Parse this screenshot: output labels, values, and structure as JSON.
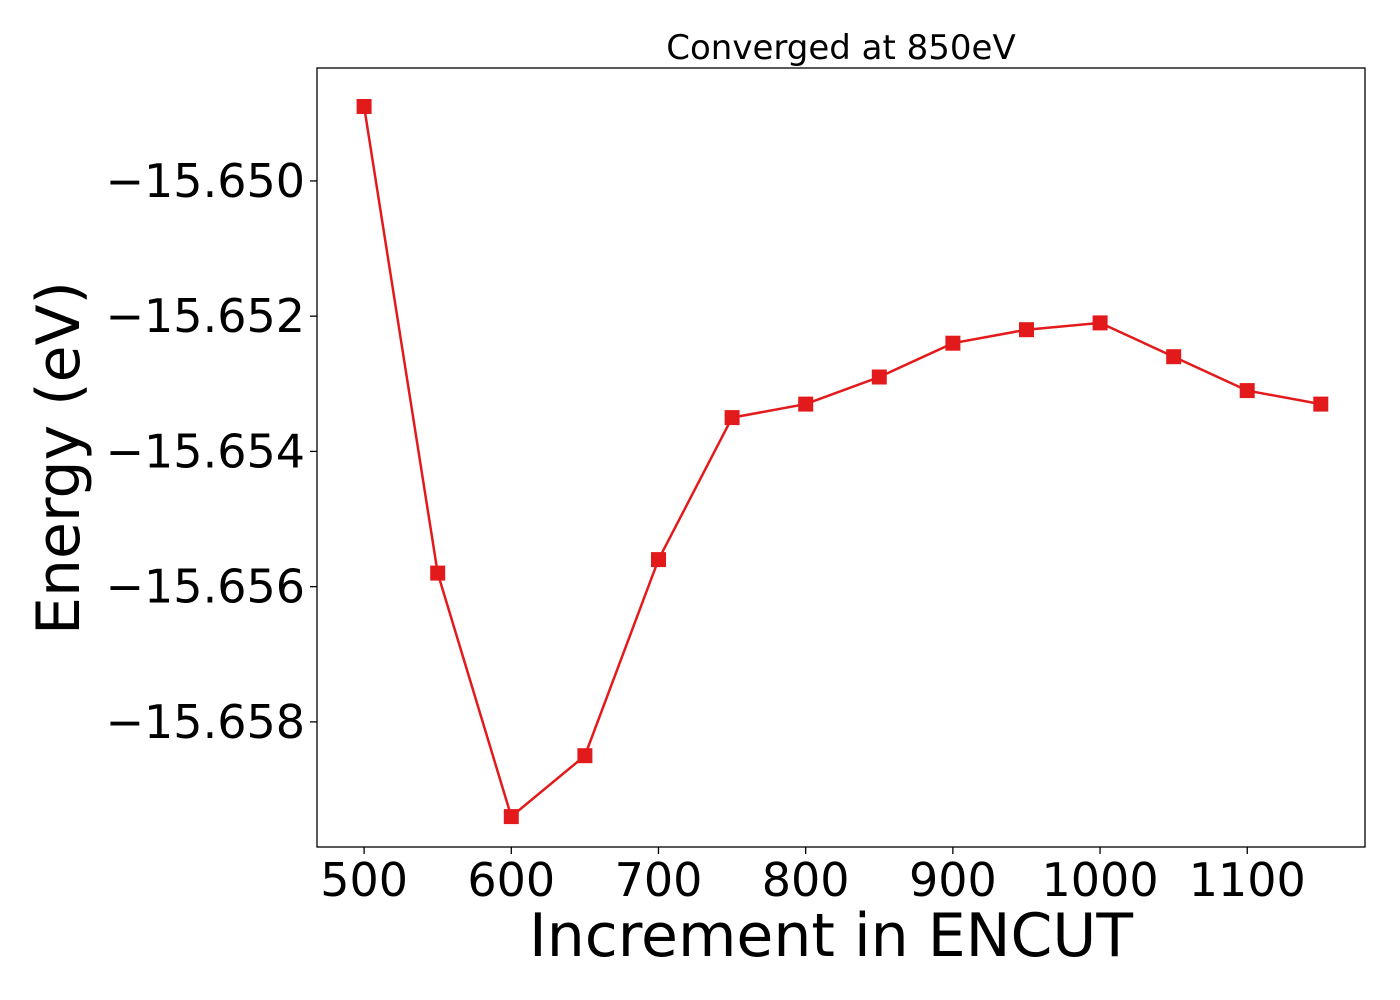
{
  "chart_data": {
    "type": "line",
    "title": "Converged at 850eV",
    "xlabel": "Increment in ENCUT",
    "ylabel": "Energy (eV)",
    "x": [
      500,
      550,
      600,
      650,
      700,
      750,
      800,
      850,
      900,
      950,
      1000,
      1050,
      1100,
      1150
    ],
    "series": [
      {
        "values": [
          -15.6489,
          -15.6558,
          -15.6594,
          -15.6585,
          -15.6556,
          -15.6535,
          -15.6533,
          -15.6529,
          -15.6524,
          -15.6522,
          -15.6521,
          -15.6526,
          -15.6531,
          -15.6533
        ],
        "color": "#e31a1c",
        "marker": "square"
      }
    ],
    "xlim": [
      468,
      1180
    ],
    "ylim": [
      -15.65985,
      -15.64833
    ],
    "xticks": [
      500,
      600,
      700,
      800,
      900,
      1000,
      1100
    ],
    "xtick_labels": [
      "500",
      "600",
      "700",
      "800",
      "900",
      "1000",
      "1100"
    ],
    "yticks": [
      -15.65,
      -15.652,
      -15.654,
      -15.656,
      -15.658
    ],
    "ytick_labels": [
      "−15.650",
      "−15.652",
      "−15.654",
      "−15.656",
      "−15.658"
    ],
    "grid": false,
    "legend": false
  }
}
